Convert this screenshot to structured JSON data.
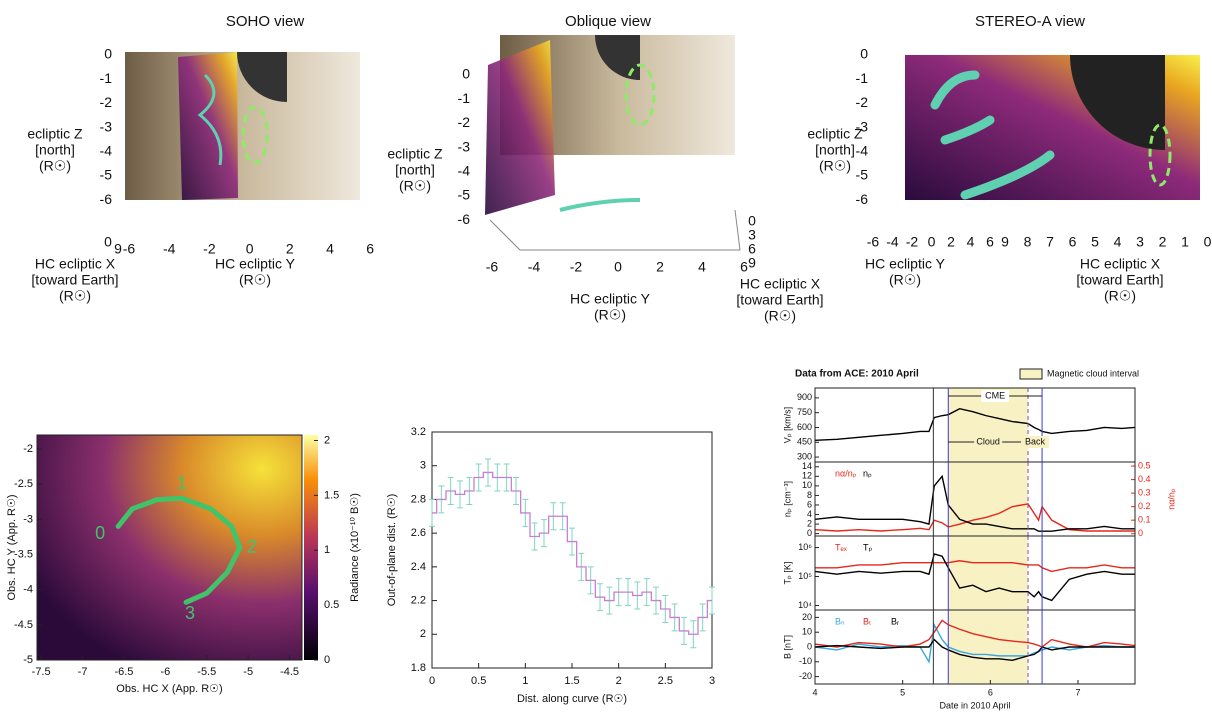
{
  "views": [
    {
      "title": "SOHO view",
      "z_label": [
        "ecliptic Z",
        "[north]",
        "(R☉)"
      ],
      "z_ticks": [
        0,
        -1,
        -2,
        -3,
        -4,
        -5,
        -6
      ],
      "axes": [
        {
          "label": [
            "HC ecliptic X",
            "[toward Earth]",
            "(R☉)"
          ],
          "ticks": [
            0,
            9
          ]
        },
        {
          "label": [
            "HC ecliptic Y",
            "(R☉)"
          ],
          "ticks": [
            -6,
            -4,
            -2,
            0,
            2,
            4,
            6
          ]
        }
      ]
    },
    {
      "title": "Oblique view",
      "z_label": [
        "ecliptic Z",
        "[north]",
        "(R☉)"
      ],
      "z_ticks": [
        0,
        -1,
        -2,
        -3,
        -4,
        -5,
        -6
      ],
      "axes": [
        {
          "label": [
            "HC ecliptic Y",
            "(R☉)"
          ],
          "ticks": [
            -6,
            -4,
            -2,
            0,
            2,
            4,
            6
          ]
        },
        {
          "label": [
            "HC ecliptic X",
            "[toward Earth]",
            "(R☉)"
          ],
          "ticks": [
            0,
            3,
            6,
            9
          ]
        }
      ]
    },
    {
      "title": "STEREO-A view",
      "z_label": [
        "ecliptic Z",
        "[north]",
        "(R☉)"
      ],
      "z_ticks": [
        0,
        -1,
        -2,
        -3,
        -4,
        -5,
        -6
      ],
      "axes": [
        {
          "label": [
            "HC ecliptic Y",
            "(R☉)"
          ],
          "ticks": [
            -6,
            -4,
            -2,
            0,
            2,
            4,
            6
          ]
        },
        {
          "label": [
            "HC ecliptic X",
            "[toward Earth]",
            "(R☉)"
          ],
          "ticks": [
            9,
            8,
            7,
            6,
            5,
            4,
            3,
            2,
            1,
            0
          ]
        }
      ]
    }
  ],
  "chart_data": [
    {
      "type": "heatmap",
      "xlabel": "Obs. HC X (App. R☉)",
      "ylabel": "Obs. HC Y (App. R☉)",
      "xlim": [
        -7.55,
        -4.35
      ],
      "ylim": [
        -5,
        -1.8
      ],
      "xticks": [
        -7.5,
        -7,
        -6.5,
        -6,
        -5.5,
        -5,
        -4.5
      ],
      "yticks": [
        -2,
        -2.5,
        -3,
        -3.5,
        -4,
        -4.5,
        -5
      ],
      "colorbar": {
        "label": "Radiance (x10⁻¹⁰ B☉)",
        "lim": [
          0,
          2.05
        ],
        "ticks": [
          0,
          0.5,
          1,
          1.5,
          2
        ]
      },
      "curve": {
        "color": "#3fc46a",
        "x": [
          -6.57,
          -6.4,
          -6.1,
          -5.8,
          -5.45,
          -5.2,
          -5.1,
          -5.25,
          -5.5,
          -5.75
        ],
        "y": [
          -3.1,
          -2.85,
          -2.72,
          -2.7,
          -2.85,
          -3.1,
          -3.4,
          -3.75,
          -4.05,
          -4.18
        ],
        "labels": [
          "0",
          "1",
          "2",
          "3"
        ]
      }
    },
    {
      "type": "line",
      "xlabel": "Dist. along curve (R☉)",
      "ylabel": "Out-of-plane dist. (R☉)",
      "xlim": [
        0,
        3
      ],
      "ylim": [
        1.8,
        3.2
      ],
      "xticks": [
        0,
        0.5,
        1,
        1.5,
        2,
        2.5,
        3
      ],
      "yticks": [
        1.8,
        2,
        2.2,
        2.4,
        2.6,
        2.8,
        3,
        3.2
      ],
      "color": "#c77fd6",
      "error_color": "#7fd6c2",
      "x": [
        0,
        0.1,
        0.2,
        0.3,
        0.4,
        0.5,
        0.6,
        0.7,
        0.8,
        0.9,
        1,
        1.1,
        1.2,
        1.3,
        1.4,
        1.5,
        1.6,
        1.7,
        1.8,
        1.9,
        2,
        2.1,
        2.2,
        2.3,
        2.4,
        2.5,
        2.6,
        2.7,
        2.8,
        2.9,
        3
      ],
      "values": [
        2.72,
        2.8,
        2.85,
        2.83,
        2.85,
        2.93,
        2.96,
        2.93,
        2.93,
        2.85,
        2.72,
        2.58,
        2.6,
        2.7,
        2.7,
        2.55,
        2.4,
        2.32,
        2.22,
        2.2,
        2.25,
        2.25,
        2.23,
        2.25,
        2.2,
        2.15,
        2.1,
        2.02,
        2,
        2.1,
        2.2
      ],
      "errors": [
        0.08,
        0.08,
        0.08,
        0.08,
        0.08,
        0.08,
        0.08,
        0.08,
        0.08,
        0.08,
        0.08,
        0.08,
        0.08,
        0.08,
        0.08,
        0.08,
        0.08,
        0.08,
        0.08,
        0.08,
        0.08,
        0.08,
        0.08,
        0.08,
        0.08,
        0.08,
        0.08,
        0.08,
        0.08,
        0.08,
        0.08
      ]
    },
    {
      "type": "multi_panel",
      "title": "Data from ACE: 2010 April",
      "legend": "Magnetic cloud interval",
      "interval_color": "#f8f1c4",
      "xlim": [
        4,
        7.65
      ],
      "xticks": [
        4,
        5,
        6,
        7
      ],
      "xlabel": "Date in 2010 April",
      "event_lines": [
        5.35,
        5.52,
        6.43,
        6.59
      ],
      "annotations": [
        "CME",
        "Cloud",
        "Back"
      ],
      "x": [
        4,
        4.25,
        4.5,
        4.75,
        5,
        5.2,
        5.3,
        5.36,
        5.45,
        5.52,
        5.65,
        5.8,
        5.95,
        6.1,
        6.25,
        6.43,
        6.5,
        6.55,
        6.59,
        6.7,
        6.9,
        7.1,
        7.3,
        7.5,
        7.65
      ],
      "panels": [
        {
          "ylabel": "Vₚ [km/s]",
          "ylim": [
            250,
            1000
          ],
          "yticks": [
            300,
            450,
            600,
            750,
            900
          ],
          "series": [
            {
              "color": "#000000",
              "values": [
                470,
                480,
                500,
                520,
                540,
                560,
                560,
                700,
                720,
                730,
                790,
                760,
                720,
                690,
                660,
                640,
                600,
                580,
                560,
                540,
                560,
                570,
                600,
                590,
                600
              ]
            }
          ]
        },
        {
          "ylabel": "nₚ [cm⁻³]",
          "ylim": [
            -0.5,
            15
          ],
          "yticks": [
            0,
            2,
            4,
            6,
            8,
            10,
            12,
            14
          ],
          "y2label": "nα/nₚ",
          "y2lim": [
            -0.017,
            0.53
          ],
          "y2ticks": [
            0,
            0.1,
            0.2,
            0.3,
            0.4,
            0.5
          ],
          "series": [
            {
              "name": "nα/nₚ",
              "color": "#e8261a",
              "axis": "y2",
              "values": [
                0.03,
                0.02,
                0.03,
                0.02,
                0.03,
                0.04,
                0.03,
                0.1,
                0.08,
                0.05,
                0.07,
                0.1,
                0.12,
                0.15,
                0.2,
                0.22,
                0.15,
                0.1,
                0.2,
                0.1,
                0.03,
                0.02,
                0.02,
                0.02,
                0.02
              ]
            },
            {
              "name": "nₚ",
              "color": "#000000",
              "values": [
                3,
                3.5,
                3,
                3,
                3,
                2.5,
                2,
                10,
                12,
                6,
                3,
                2,
                2,
                1.5,
                1,
                1,
                1,
                0.5,
                0.5,
                0.5,
                1,
                1,
                1.5,
                1,
                1
              ]
            }
          ]
        },
        {
          "ylabel": "Tₚ [K]",
          "log": true,
          "ylim": [
            7000,
            2500000
          ],
          "yticks": [
            {
              "value": 10000,
              "label": "10⁴"
            },
            {
              "value": 100000,
              "label": "10⁵"
            },
            {
              "value": 1000000,
              "label": "10⁶"
            }
          ],
          "series": [
            {
              "name": "Tₑₓ",
              "color": "#e8261a",
              "values": [
                200000,
                200000,
                250000,
                250000,
                300000,
                300000,
                300000,
                300000,
                300000,
                300000,
                350000,
                300000,
                300000,
                300000,
                300000,
                250000,
                250000,
                250000,
                200000,
                150000,
                200000,
                200000,
                250000,
                200000,
                200000
              ]
            },
            {
              "name": "Tₚ",
              "color": "#000000",
              "values": [
                150000,
                120000,
                150000,
                130000,
                150000,
                150000,
                120000,
                600000,
                500000,
                200000,
                40000,
                50000,
                30000,
                40000,
                30000,
                30000,
                20000,
                30000,
                20000,
                15000,
                80000,
                120000,
                150000,
                120000,
                120000
              ]
            }
          ]
        },
        {
          "ylabel": "B [nT]",
          "ylim": [
            -25,
            25
          ],
          "yticks": [
            -20,
            -10,
            0,
            10,
            20
          ],
          "series": [
            {
              "name": "Bₙ",
              "color": "#3aa7e0",
              "values": [
                0,
                -2,
                2,
                0,
                1,
                0,
                -10,
                15,
                5,
                0,
                -3,
                -5,
                -5,
                -6,
                -6,
                -6,
                -4,
                -3,
                -2,
                0,
                -2,
                0,
                1,
                0,
                0
              ]
            },
            {
              "name": "Bₜ",
              "color": "#e8261a",
              "values": [
                2,
                0,
                3,
                2,
                0,
                2,
                5,
                10,
                18,
                15,
                12,
                9,
                7,
                5,
                4,
                3,
                2,
                1,
                0,
                5,
                2,
                0,
                3,
                2,
                1
              ]
            },
            {
              "name": "Bᵣ",
              "color": "#000000",
              "values": [
                0,
                1,
                0,
                -1,
                0,
                0,
                0,
                5,
                0,
                -2,
                -5,
                -7,
                -8,
                -8,
                -9,
                -6,
                -5,
                -3,
                0,
                -2,
                0,
                0,
                0,
                0,
                0
              ]
            }
          ]
        }
      ]
    }
  ]
}
